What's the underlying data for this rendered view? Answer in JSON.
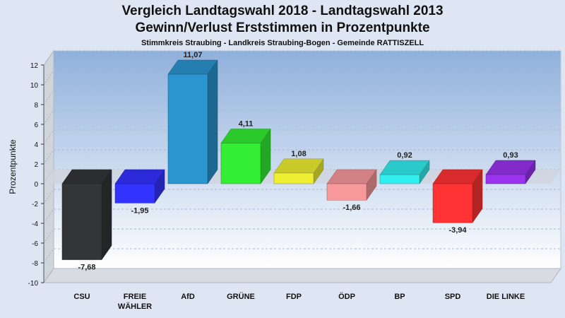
{
  "chart_data": {
    "type": "bar",
    "title": "Vergleich Landtagswahl 2018 - Landtagswahl 2013",
    "title2": "Gewinn/Verlust Erststimmen in Prozentpunkte",
    "subtitle": "Stimmkreis Straubing - Landkreis Straubing-Bogen - Gemeinde RATTISZELL",
    "ylabel": "Prozentpunkte",
    "ylim": [
      -10,
      12
    ],
    "yticks": [
      -10,
      -8,
      -6,
      -4,
      -2,
      0,
      2,
      4,
      6,
      8,
      10,
      12
    ],
    "grid": true,
    "categories": [
      {
        "label": [
          "CSU"
        ]
      },
      {
        "label": [
          "FREIE",
          "WÄHLER"
        ]
      },
      {
        "label": [
          "AfD"
        ]
      },
      {
        "label": [
          "GRÜNE"
        ]
      },
      {
        "label": [
          "FDP"
        ]
      },
      {
        "label": [
          "ÖDP"
        ]
      },
      {
        "label": [
          "BP"
        ]
      },
      {
        "label": [
          "SPD"
        ]
      },
      {
        "label": [
          "DIE LINKE"
        ]
      }
    ],
    "values": [
      -7.68,
      -1.95,
      11.07,
      4.11,
      1.08,
      -1.66,
      0.92,
      -3.94,
      0.93
    ],
    "value_labels": [
      "-7,68",
      "-1,95",
      "11,07",
      "4,11",
      "1,08",
      "-1,66",
      "0,92",
      "-3,94",
      "0,93"
    ],
    "colors": [
      "#333538",
      "#3333ff",
      "#2a95cf",
      "#33ee33",
      "#eeee33",
      "#f7989b",
      "#33eeee",
      "#ff3333",
      "#9933ee"
    ]
  }
}
